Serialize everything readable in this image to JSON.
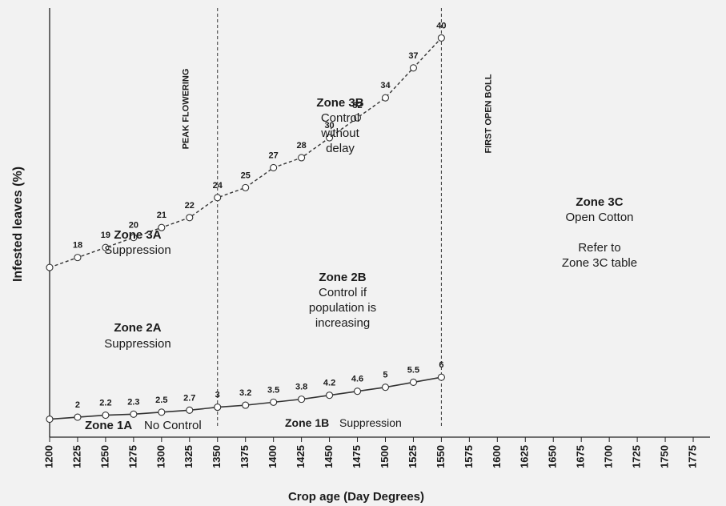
{
  "chart_data": {
    "type": "line",
    "xlabel": "Crop age (Day Degrees)",
    "ylabel": "Infested leaves (%)",
    "x_ticks": [
      1200,
      1225,
      1250,
      1275,
      1300,
      1325,
      1350,
      1375,
      1400,
      1425,
      1450,
      1475,
      1500,
      1525,
      1550,
      1575,
      1600,
      1625,
      1650,
      1675,
      1700,
      1725,
      1750,
      1775
    ],
    "xlim": [
      1200,
      1790
    ],
    "ylim": [
      0,
      43
    ],
    "series": [
      {
        "style": "dashed",
        "x": [
          1200,
          1225,
          1250,
          1275,
          1300,
          1325,
          1350,
          1375,
          1400,
          1425,
          1450,
          1475,
          1500,
          1525,
          1550
        ],
        "values": [
          17,
          18,
          19,
          20,
          21,
          22,
          24,
          25,
          27,
          28,
          30,
          32,
          34,
          37,
          40
        ],
        "labels": [
          "",
          "18",
          "19",
          "20",
          "21",
          "22",
          "24",
          "25",
          "27",
          "28",
          "30",
          "32",
          "34",
          "37",
          "40"
        ]
      },
      {
        "style": "solid",
        "x": [
          1200,
          1225,
          1250,
          1275,
          1300,
          1325,
          1350,
          1375,
          1400,
          1425,
          1450,
          1475,
          1500,
          1525,
          1550
        ],
        "values": [
          1.8,
          2,
          2.2,
          2.3,
          2.5,
          2.7,
          3,
          3.2,
          3.5,
          3.8,
          4.2,
          4.6,
          5,
          5.5,
          6
        ],
        "labels": [
          "",
          "2",
          "2.2",
          "2.3",
          "2.5",
          "2.7",
          "3",
          "3.2",
          "3.5",
          "3.8",
          "4.2",
          "4.6",
          "5",
          "5.5",
          "6"
        ]
      }
    ],
    "vlines": [
      {
        "x": 1350,
        "label": "PEAK  FLOWERING"
      },
      {
        "x": 1550,
        "label": "FIRST OPEN BOLL"
      }
    ],
    "zones": {
      "z3b": {
        "title": "Zone 3B",
        "lines": [
          "Control",
          "without",
          "delay"
        ]
      },
      "z3a": {
        "title": "Zone 3A",
        "lines": [
          "Suppression"
        ]
      },
      "z2a": {
        "title": "Zone 2A",
        "lines": [
          "Suppression"
        ]
      },
      "z2b": {
        "title": "Zone 2B",
        "lines": [
          "Control if",
          "population is",
          "increasing"
        ]
      },
      "z3c": {
        "title": "Zone 3C",
        "lines": [
          "Open Cotton",
          "",
          "Refer to",
          "Zone 3C table"
        ]
      },
      "z1a": {
        "title": "Zone 1A",
        "sub": "No Control"
      },
      "z1b": {
        "title": "Zone 1B",
        "sub": "Suppression"
      }
    },
    "grid": false,
    "colors": {
      "line": "#333333",
      "background": "#f2f2f2",
      "axis": "#222222",
      "marker_fill": "#ffffff"
    }
  }
}
